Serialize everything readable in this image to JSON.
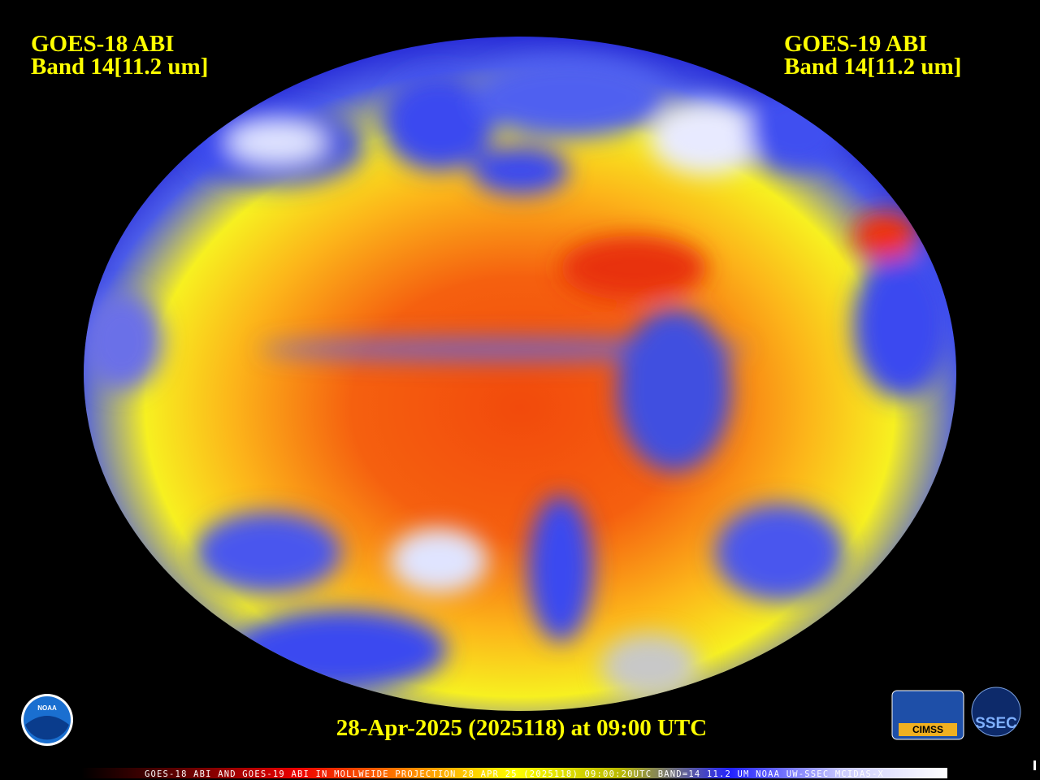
{
  "header": {
    "left": {
      "satellite": "GOES-18 ABI",
      "band": "Band 14[11.2 um]"
    },
    "right": {
      "satellite": "GOES-19 ABI",
      "band": "Band 14[11.2 um]"
    }
  },
  "timestamp": "28-Apr-2025 (2025118) at 09:00 UTC",
  "colorbar": {
    "caption": "GOES-18 ABI AND GOES-19 ABI IN MOLLWEIDE PROJECTION 28 APR 25 (2025118) 09:00:20UTC BAND=14 11.2 UM NOAA UW-SSEC MCIDAS-X"
  },
  "logos": {
    "noaa": "NOAA",
    "cimss": "CIMSS",
    "ssec": "SSEC"
  }
}
